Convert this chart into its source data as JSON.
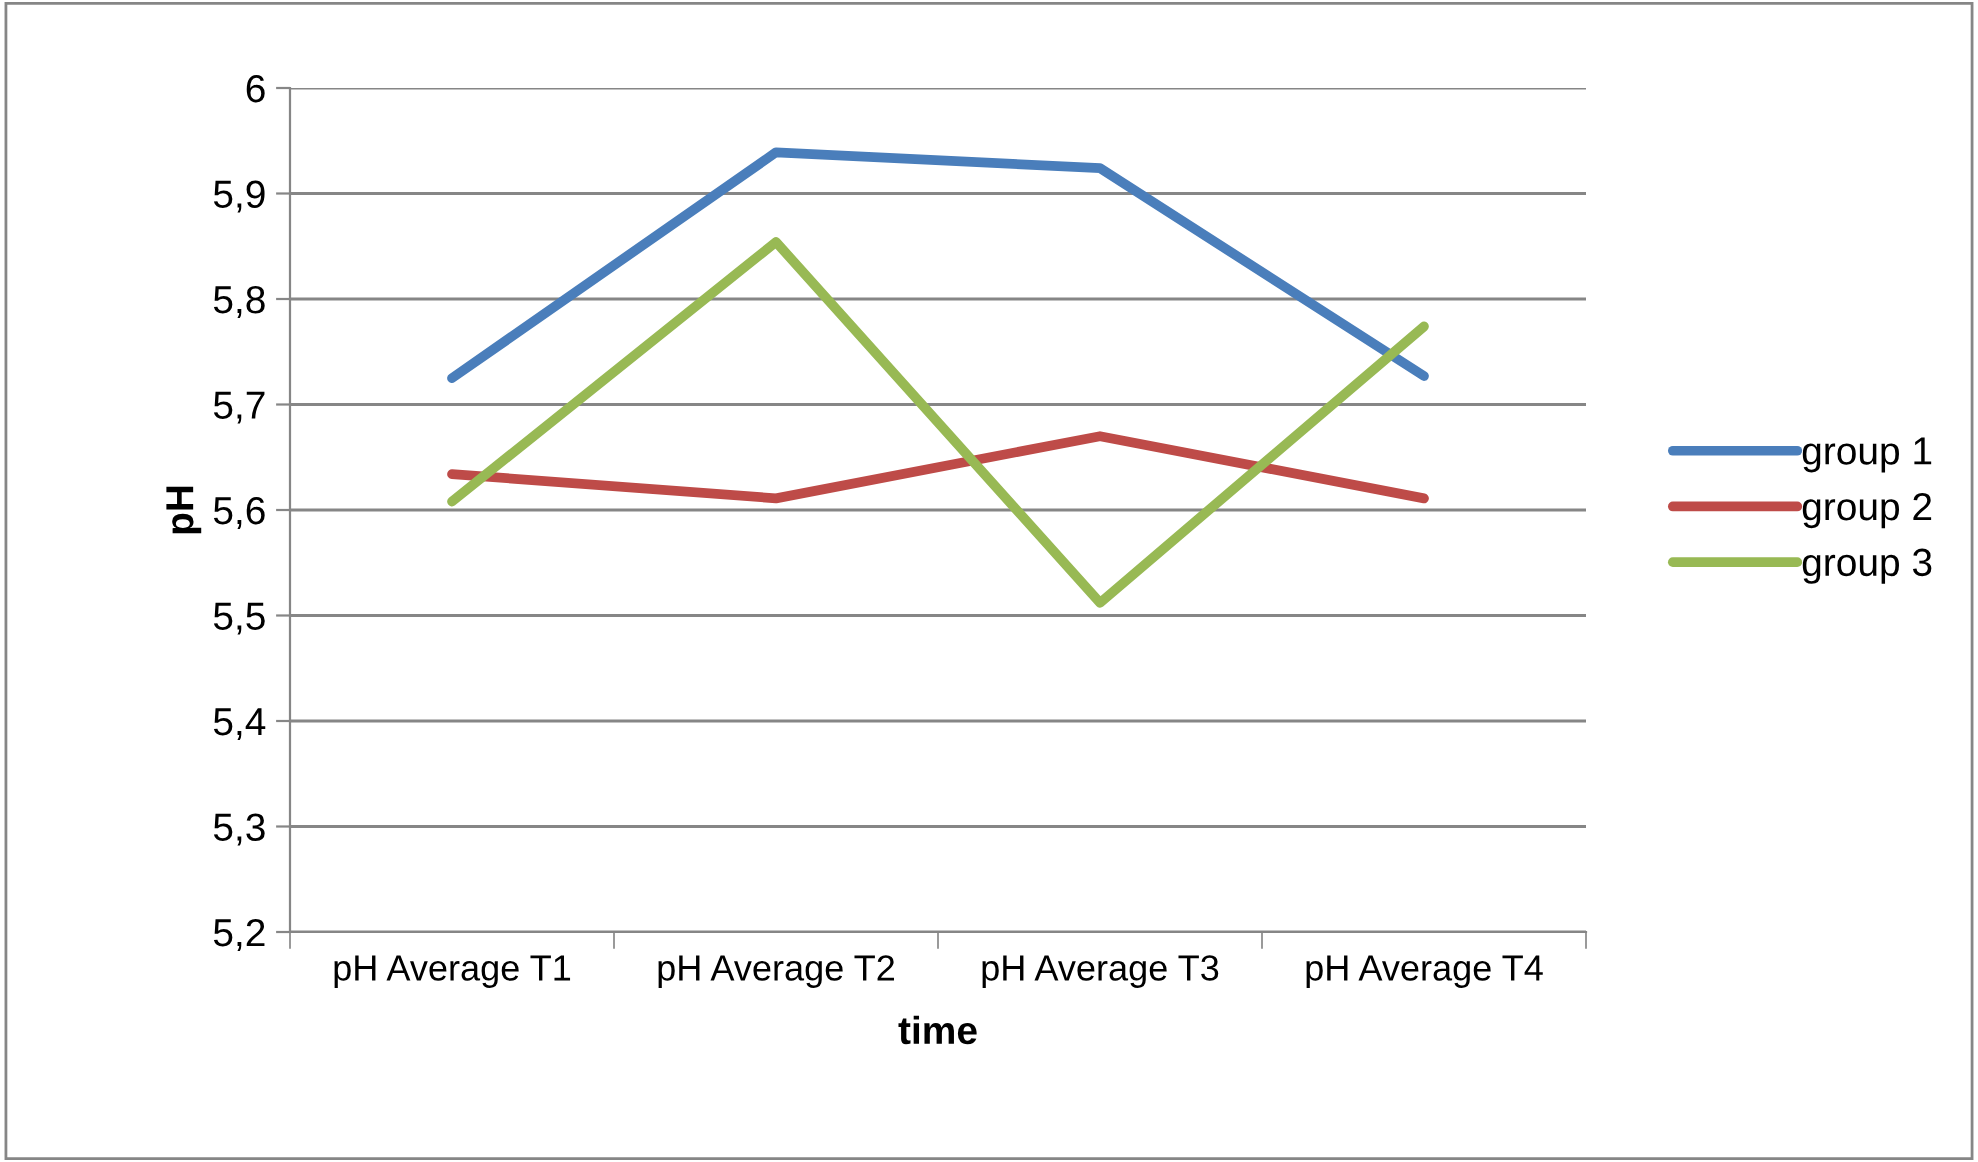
{
  "chart_data": {
    "type": "line",
    "xlabel": "time",
    "ylabel": "pH",
    "categories": [
      "pH Average T1",
      "pH Average T2",
      "pH Average T3",
      "pH Average T4"
    ],
    "series": [
      {
        "name": "group 1",
        "color": "#4a7ebb",
        "values": [
          5.725,
          5.939,
          5.924,
          5.727
        ]
      },
      {
        "name": "group 2",
        "color": "#be4b48",
        "values": [
          5.634,
          5.611,
          5.67,
          5.611
        ]
      },
      {
        "name": "group 3",
        "color": "#98b954",
        "values": [
          5.608,
          5.854,
          5.512,
          5.774
        ]
      }
    ],
    "ylim": [
      5.2,
      6
    ],
    "yticks": [
      {
        "value": 5.2,
        "label": "5,2"
      },
      {
        "value": 5.3,
        "label": "5,3"
      },
      {
        "value": 5.4,
        "label": "5,4"
      },
      {
        "value": 5.5,
        "label": "5,5"
      },
      {
        "value": 5.6,
        "label": "5,6"
      },
      {
        "value": 5.7,
        "label": "5,7"
      },
      {
        "value": 5.8,
        "label": "5,8"
      },
      {
        "value": 5.9,
        "label": "5,9"
      },
      6
    ],
    "grid": "y",
    "legend": "right",
    "marker": "none",
    "line_style": "solid"
  }
}
